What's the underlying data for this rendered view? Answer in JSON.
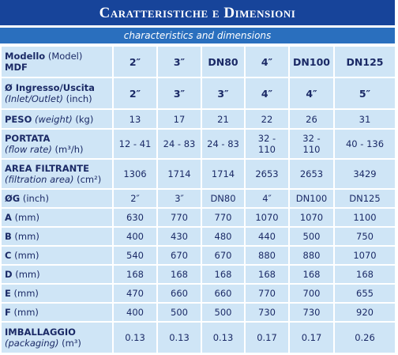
{
  "header": {
    "title": "Caratteristiche e Dimensioni",
    "subtitle": "characteristics and dimensions"
  },
  "table": {
    "rows": [
      {
        "label": [
          "Modello",
          "(Model)",
          "MDF"
        ],
        "values": [
          "2″",
          "3″",
          "DN80",
          "4″",
          "DN100",
          "DN125"
        ]
      },
      {
        "label": [
          "Ø Ingresso/Uscita",
          "(Inlet/Outlet)",
          "(inch)"
        ],
        "values": [
          "2″",
          "3″",
          "3″",
          "4″",
          "4″",
          "5″"
        ]
      },
      {
        "label": [
          "PESO",
          "(weight)",
          "(kg)"
        ],
        "values": [
          13,
          17,
          21,
          22,
          26,
          31
        ]
      },
      {
        "label": [
          "PORTATA",
          "(flow rate)",
          "(m³/h)"
        ],
        "values": [
          "12 - 41",
          "24 - 83",
          "24 - 83",
          "32 - 110",
          "32 - 110",
          "40 - 136"
        ]
      },
      {
        "label": [
          "AREA FILTRANTE",
          "(filtration area)",
          "(cm²)"
        ],
        "values": [
          1306,
          1714,
          1714,
          2653,
          2653,
          3429
        ]
      },
      {
        "label": [
          "ØG",
          "(inch)"
        ],
        "values": [
          "2″",
          "3″",
          "DN80",
          "4″",
          "DN100",
          "DN125"
        ]
      },
      {
        "label": [
          "A",
          "(mm)"
        ],
        "values": [
          630,
          770,
          770,
          1070,
          1070,
          1100
        ]
      },
      {
        "label": [
          "B",
          "(mm)"
        ],
        "values": [
          400,
          430,
          480,
          440,
          500,
          750
        ]
      },
      {
        "label": [
          "C",
          "(mm)"
        ],
        "values": [
          540,
          670,
          670,
          880,
          880,
          1070
        ]
      },
      {
        "label": [
          "D",
          "(mm)"
        ],
        "values": [
          168,
          168,
          168,
          168,
          168,
          168
        ]
      },
      {
        "label": [
          "E",
          "(mm)"
        ],
        "values": [
          470,
          660,
          660,
          770,
          700,
          655
        ]
      },
      {
        "label": [
          "F",
          "(mm)"
        ],
        "values": [
          400,
          500,
          500,
          730,
          730,
          920
        ]
      },
      {
        "label": [
          "IMBALLAGGIO",
          "(packaging)",
          "(m³)"
        ],
        "values": [
          0.13,
          0.13,
          0.13,
          0.17,
          0.17,
          0.26
        ]
      }
    ]
  }
}
